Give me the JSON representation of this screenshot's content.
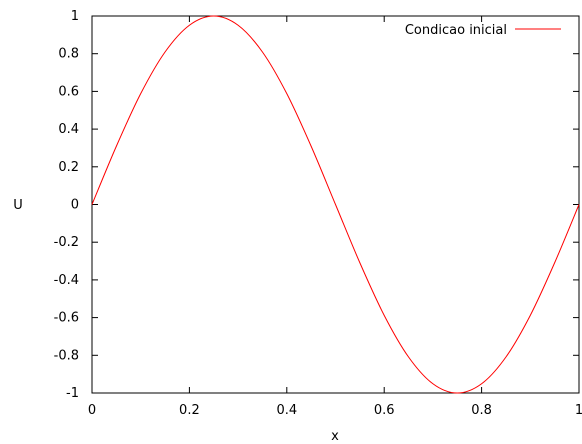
{
  "chart_data": {
    "type": "line",
    "xlabel": "x",
    "ylabel": "U",
    "xlim": [
      0,
      1
    ],
    "ylim": [
      -1,
      1
    ],
    "xticks": [
      "0",
      "0.2",
      "0.4",
      "0.6",
      "0.8",
      "1"
    ],
    "yticks": [
      "1",
      "0.8",
      "0.6",
      "0.4",
      "0.2",
      "0",
      "-0.2",
      "-0.4",
      "-0.6",
      "-0.8",
      "-1"
    ],
    "grid": false,
    "legend_position": "top-right",
    "series": [
      {
        "name": "Condicao inicial",
        "color": "#ff0000",
        "x": [
          0,
          0.05,
          0.1,
          0.15,
          0.2,
          0.25,
          0.3,
          0.35,
          0.4,
          0.45,
          0.5,
          0.55,
          0.6,
          0.65,
          0.7,
          0.75,
          0.8,
          0.85,
          0.9,
          0.95,
          1
        ],
        "y": [
          0,
          0.309,
          0.588,
          0.809,
          0.951,
          1,
          0.951,
          0.809,
          0.588,
          0.309,
          0,
          -0.309,
          -0.588,
          -0.809,
          -0.951,
          -1,
          -0.951,
          -0.809,
          -0.588,
          -0.309,
          0
        ]
      }
    ]
  }
}
